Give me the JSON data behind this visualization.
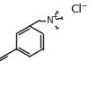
{
  "bg_color": "#ffffff",
  "line_color": "#1a1a1a",
  "text_color": "#1a1a1a",
  "fig_width": 1.09,
  "fig_height": 0.98,
  "dpi": 100,
  "font_size": 7.0
}
